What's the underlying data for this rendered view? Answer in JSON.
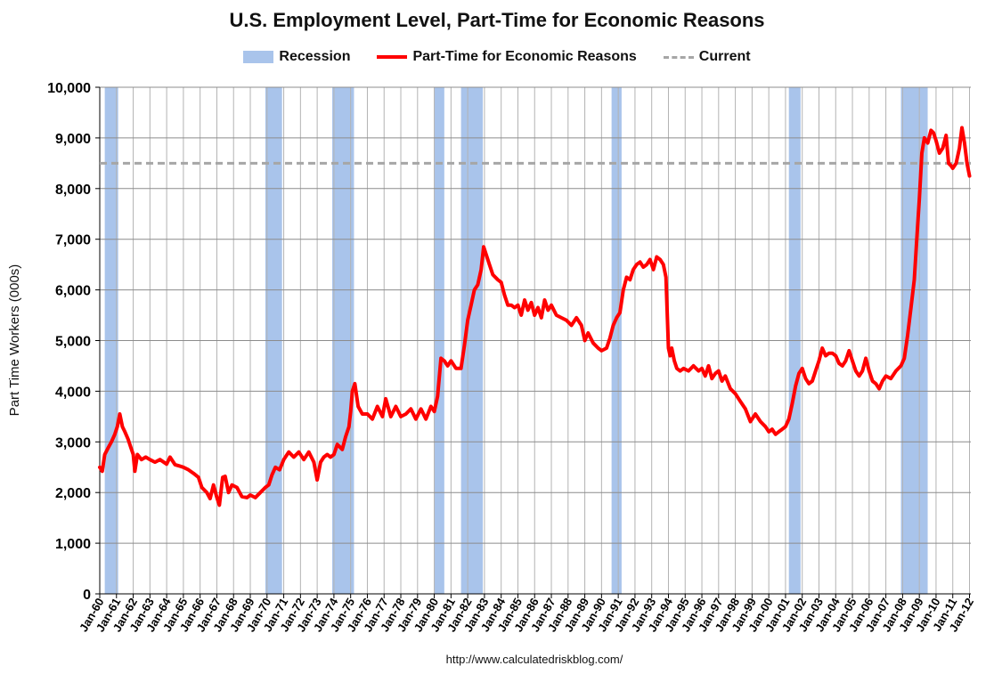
{
  "chart_data": {
    "type": "line",
    "title": "U.S. Employment Level, Part-Time for Economic Reasons",
    "ylabel": "Part Time Workers (000s)",
    "xlabel": "",
    "ylim": [
      0,
      10000
    ],
    "yticks": [
      0,
      1000,
      2000,
      3000,
      4000,
      5000,
      6000,
      7000,
      8000,
      9000,
      10000
    ],
    "ytick_labels": [
      "0",
      "1,000",
      "2,000",
      "3,000",
      "4,000",
      "5,000",
      "6,000",
      "7,000",
      "8,000",
      "9,000",
      "10,000"
    ],
    "xlim": [
      1960.0,
      2012.08
    ],
    "xtick_labels": [
      "Jan-60",
      "Jan-61",
      "Jan-62",
      "Jan-63",
      "Jan-64",
      "Jan-65",
      "Jan-66",
      "Jan-67",
      "Jan-68",
      "Jan-69",
      "Jan-70",
      "Jan-71",
      "Jan-72",
      "Jan-73",
      "Jan-74",
      "Jan-75",
      "Jan-76",
      "Jan-77",
      "Jan-78",
      "Jan-79",
      "Jan-80",
      "Jan-81",
      "Jan-82",
      "Jan-83",
      "Jan-84",
      "Jan-85",
      "Jan-86",
      "Jan-87",
      "Jan-88",
      "Jan-89",
      "Jan-90",
      "Jan-91",
      "Jan-92",
      "Jan-93",
      "Jan-94",
      "Jan-95",
      "Jan-96",
      "Jan-97",
      "Jan-98",
      "Jan-99",
      "Jan-00",
      "Jan-01",
      "Jan-02",
      "Jan-03",
      "Jan-04",
      "Jan-05",
      "Jan-06",
      "Jan-07",
      "Jan-08",
      "Jan-09",
      "Jan-10",
      "Jan-11",
      "Jan-12"
    ],
    "grid": true,
    "legend_placement": "top-center",
    "legend": [
      "Recession",
      "Part-Time for Economic Reasons",
      "Current"
    ],
    "recessions": [
      [
        1960.3,
        1961.1
      ],
      [
        1969.9,
        1970.9
      ],
      [
        1973.9,
        1975.2
      ],
      [
        1980.0,
        1980.6
      ],
      [
        1981.6,
        1982.9
      ],
      [
        1990.6,
        1991.2
      ],
      [
        2001.2,
        2001.9
      ],
      [
        2007.9,
        2009.5
      ]
    ],
    "current_value": 8500,
    "series": [
      {
        "name": "Part-Time for Economic Reasons",
        "points": [
          [
            1960.0,
            2500
          ],
          [
            1960.15,
            2420
          ],
          [
            1960.3,
            2750
          ],
          [
            1960.5,
            2880
          ],
          [
            1960.7,
            3000
          ],
          [
            1960.9,
            3150
          ],
          [
            1961.05,
            3300
          ],
          [
            1961.2,
            3550
          ],
          [
            1961.35,
            3300
          ],
          [
            1961.5,
            3200
          ],
          [
            1961.7,
            3050
          ],
          [
            1961.85,
            2900
          ],
          [
            1962.0,
            2750
          ],
          [
            1962.1,
            2420
          ],
          [
            1962.25,
            2750
          ],
          [
            1962.5,
            2650
          ],
          [
            1962.75,
            2700
          ],
          [
            1963.0,
            2650
          ],
          [
            1963.3,
            2600
          ],
          [
            1963.6,
            2650
          ],
          [
            1964.0,
            2560
          ],
          [
            1964.2,
            2700
          ],
          [
            1964.5,
            2550
          ],
          [
            1964.8,
            2520
          ],
          [
            1965.0,
            2500
          ],
          [
            1965.3,
            2450
          ],
          [
            1965.6,
            2380
          ],
          [
            1965.9,
            2300
          ],
          [
            1966.1,
            2100
          ],
          [
            1966.4,
            2000
          ],
          [
            1966.6,
            1880
          ],
          [
            1966.8,
            2150
          ],
          [
            1967.0,
            1900
          ],
          [
            1967.15,
            1750
          ],
          [
            1967.35,
            2300
          ],
          [
            1967.5,
            2320
          ],
          [
            1967.7,
            2000
          ],
          [
            1967.9,
            2150
          ],
          [
            1968.2,
            2100
          ],
          [
            1968.5,
            1920
          ],
          [
            1968.8,
            1900
          ],
          [
            1969.0,
            1950
          ],
          [
            1969.3,
            1900
          ],
          [
            1969.6,
            2000
          ],
          [
            1969.9,
            2100
          ],
          [
            1970.1,
            2150
          ],
          [
            1970.3,
            2350
          ],
          [
            1970.5,
            2500
          ],
          [
            1970.75,
            2450
          ],
          [
            1971.0,
            2650
          ],
          [
            1971.3,
            2800
          ],
          [
            1971.6,
            2700
          ],
          [
            1971.9,
            2800
          ],
          [
            1972.2,
            2650
          ],
          [
            1972.5,
            2800
          ],
          [
            1972.8,
            2600
          ],
          [
            1973.0,
            2250
          ],
          [
            1973.2,
            2600
          ],
          [
            1973.4,
            2700
          ],
          [
            1973.6,
            2750
          ],
          [
            1973.8,
            2700
          ],
          [
            1974.0,
            2750
          ],
          [
            1974.2,
            2950
          ],
          [
            1974.5,
            2850
          ],
          [
            1974.7,
            3100
          ],
          [
            1974.9,
            3300
          ],
          [
            1975.0,
            3600
          ],
          [
            1975.1,
            4000
          ],
          [
            1975.25,
            4150
          ],
          [
            1975.45,
            3700
          ],
          [
            1975.7,
            3550
          ],
          [
            1976.0,
            3550
          ],
          [
            1976.3,
            3450
          ],
          [
            1976.6,
            3700
          ],
          [
            1976.9,
            3500
          ],
          [
            1977.1,
            3850
          ],
          [
            1977.4,
            3500
          ],
          [
            1977.7,
            3700
          ],
          [
            1978.0,
            3500
          ],
          [
            1978.3,
            3550
          ],
          [
            1978.6,
            3650
          ],
          [
            1978.9,
            3450
          ],
          [
            1979.2,
            3650
          ],
          [
            1979.5,
            3450
          ],
          [
            1979.8,
            3700
          ],
          [
            1980.0,
            3600
          ],
          [
            1980.2,
            3900
          ],
          [
            1980.4,
            4650
          ],
          [
            1980.6,
            4600
          ],
          [
            1980.8,
            4500
          ],
          [
            1981.0,
            4600
          ],
          [
            1981.3,
            4450
          ],
          [
            1981.6,
            4450
          ],
          [
            1981.8,
            4900
          ],
          [
            1982.0,
            5400
          ],
          [
            1982.2,
            5700
          ],
          [
            1982.4,
            6000
          ],
          [
            1982.6,
            6100
          ],
          [
            1982.8,
            6400
          ],
          [
            1982.95,
            6850
          ],
          [
            1983.1,
            6700
          ],
          [
            1983.3,
            6500
          ],
          [
            1983.5,
            6300
          ],
          [
            1983.8,
            6200
          ],
          [
            1984.0,
            6150
          ],
          [
            1984.2,
            5900
          ],
          [
            1984.4,
            5700
          ],
          [
            1984.6,
            5700
          ],
          [
            1984.8,
            5650
          ],
          [
            1985.0,
            5700
          ],
          [
            1985.2,
            5500
          ],
          [
            1985.4,
            5800
          ],
          [
            1985.6,
            5600
          ],
          [
            1985.8,
            5750
          ],
          [
            1986.0,
            5500
          ],
          [
            1986.2,
            5650
          ],
          [
            1986.4,
            5450
          ],
          [
            1986.6,
            5800
          ],
          [
            1986.8,
            5600
          ],
          [
            1987.0,
            5700
          ],
          [
            1987.3,
            5500
          ],
          [
            1987.6,
            5450
          ],
          [
            1987.9,
            5400
          ],
          [
            1988.2,
            5300
          ],
          [
            1988.5,
            5450
          ],
          [
            1988.8,
            5300
          ],
          [
            1989.0,
            5000
          ],
          [
            1989.2,
            5150
          ],
          [
            1989.5,
            4950
          ],
          [
            1989.8,
            4850
          ],
          [
            1990.0,
            4800
          ],
          [
            1990.3,
            4850
          ],
          [
            1990.5,
            5050
          ],
          [
            1990.7,
            5300
          ],
          [
            1990.9,
            5450
          ],
          [
            1991.1,
            5550
          ],
          [
            1991.3,
            6000
          ],
          [
            1991.5,
            6250
          ],
          [
            1991.7,
            6200
          ],
          [
            1991.9,
            6400
          ],
          [
            1992.1,
            6500
          ],
          [
            1992.3,
            6550
          ],
          [
            1992.5,
            6450
          ],
          [
            1992.7,
            6500
          ],
          [
            1992.9,
            6600
          ],
          [
            1993.1,
            6400
          ],
          [
            1993.3,
            6650
          ],
          [
            1993.5,
            6600
          ],
          [
            1993.7,
            6500
          ],
          [
            1993.85,
            6250
          ],
          [
            1994.0,
            4850
          ],
          [
            1994.1,
            4700
          ],
          [
            1994.2,
            4850
          ],
          [
            1994.35,
            4600
          ],
          [
            1994.5,
            4450
          ],
          [
            1994.7,
            4400
          ],
          [
            1994.9,
            4450
          ],
          [
            1995.2,
            4400
          ],
          [
            1995.5,
            4500
          ],
          [
            1995.8,
            4400
          ],
          [
            1996.0,
            4450
          ],
          [
            1996.2,
            4300
          ],
          [
            1996.4,
            4500
          ],
          [
            1996.6,
            4250
          ],
          [
            1996.8,
            4350
          ],
          [
            1997.0,
            4400
          ],
          [
            1997.2,
            4200
          ],
          [
            1997.4,
            4300
          ],
          [
            1997.7,
            4050
          ],
          [
            1998.0,
            3950
          ],
          [
            1998.3,
            3800
          ],
          [
            1998.6,
            3650
          ],
          [
            1998.9,
            3400
          ],
          [
            1999.2,
            3550
          ],
          [
            1999.5,
            3400
          ],
          [
            1999.8,
            3300
          ],
          [
            2000.0,
            3200
          ],
          [
            2000.2,
            3250
          ],
          [
            2000.4,
            3150
          ],
          [
            2000.6,
            3200
          ],
          [
            2000.8,
            3250
          ],
          [
            2001.0,
            3300
          ],
          [
            2001.2,
            3450
          ],
          [
            2001.4,
            3750
          ],
          [
            2001.6,
            4100
          ],
          [
            2001.8,
            4350
          ],
          [
            2002.0,
            4450
          ],
          [
            2002.2,
            4250
          ],
          [
            2002.4,
            4150
          ],
          [
            2002.6,
            4200
          ],
          [
            2002.8,
            4400
          ],
          [
            2003.0,
            4600
          ],
          [
            2003.2,
            4850
          ],
          [
            2003.4,
            4700
          ],
          [
            2003.6,
            4750
          ],
          [
            2003.8,
            4750
          ],
          [
            2004.0,
            4700
          ],
          [
            2004.2,
            4550
          ],
          [
            2004.4,
            4500
          ],
          [
            2004.6,
            4600
          ],
          [
            2004.8,
            4800
          ],
          [
            2005.0,
            4600
          ],
          [
            2005.2,
            4400
          ],
          [
            2005.4,
            4300
          ],
          [
            2005.6,
            4400
          ],
          [
            2005.8,
            4650
          ],
          [
            2006.0,
            4400
          ],
          [
            2006.2,
            4200
          ],
          [
            2006.4,
            4150
          ],
          [
            2006.6,
            4050
          ],
          [
            2006.8,
            4200
          ],
          [
            2007.0,
            4300
          ],
          [
            2007.3,
            4250
          ],
          [
            2007.6,
            4400
          ],
          [
            2007.9,
            4500
          ],
          [
            2008.1,
            4650
          ],
          [
            2008.3,
            5100
          ],
          [
            2008.5,
            5650
          ],
          [
            2008.7,
            6200
          ],
          [
            2008.85,
            7000
          ],
          [
            2009.0,
            7800
          ],
          [
            2009.15,
            8700
          ],
          [
            2009.3,
            9000
          ],
          [
            2009.5,
            8900
          ],
          [
            2009.7,
            9150
          ],
          [
            2009.85,
            9100
          ],
          [
            2010.0,
            8950
          ],
          [
            2010.2,
            8700
          ],
          [
            2010.4,
            8800
          ],
          [
            2010.6,
            9050
          ],
          [
            2010.75,
            8500
          ],
          [
            2010.9,
            8450
          ],
          [
            2011.0,
            8400
          ],
          [
            2011.2,
            8500
          ],
          [
            2011.4,
            8800
          ],
          [
            2011.55,
            9200
          ],
          [
            2011.7,
            8900
          ],
          [
            2011.85,
            8500
          ],
          [
            2012.0,
            8250
          ]
        ]
      }
    ]
  },
  "footer": {
    "source_url": "http://www.calculatedriskblog.com/"
  },
  "colors": {
    "recession": "#a9c4eb",
    "line": "#ff0000",
    "current": "#a6a6a6",
    "grid": "#b3b3b3"
  }
}
